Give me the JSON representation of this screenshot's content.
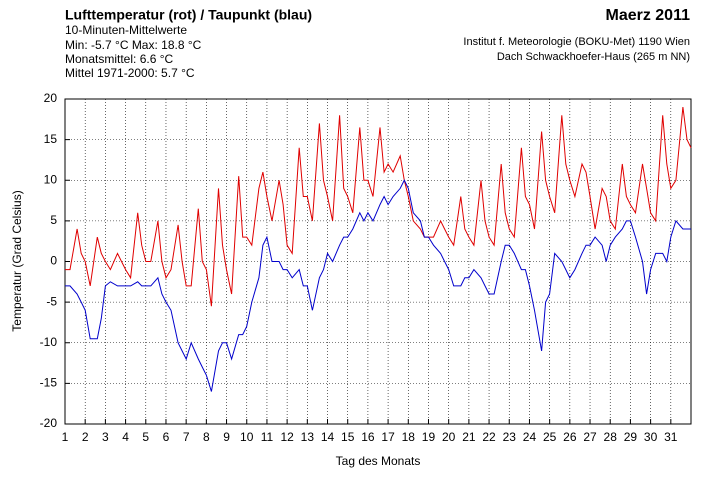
{
  "chart_data": {
    "type": "line",
    "title": "Lufttemperatur (rot) / Taupunkt (blau)",
    "subtitle": "10-Minuten-Mittelwerte",
    "annotations": [
      "Min:  -5.7 °C   Max:  18.8 °C",
      "Monatsmittel:  6.6 °C",
      "Mittel 1971-2000:  5.7 °C"
    ],
    "period": "Maerz 2011",
    "source": [
      "Institut f. Meteorologie (BOKU-Met) 1190 Wien",
      "Dach Schwackhoefer-Haus (265 m NN)"
    ],
    "xlabel": "Tag des Monats",
    "ylabel": "Temperatur (Grad Celsius)",
    "x": [
      1,
      1.25,
      1.6,
      1.8,
      2,
      2.25,
      2.6,
      2.8,
      3,
      3.25,
      3.6,
      3.8,
      4,
      4.25,
      4.6,
      4.8,
      5,
      5.25,
      5.6,
      5.8,
      6,
      6.25,
      6.6,
      6.8,
      7,
      7.25,
      7.6,
      7.8,
      8,
      8.25,
      8.6,
      8.8,
      9,
      9.25,
      9.6,
      9.8,
      10,
      10.25,
      10.6,
      10.8,
      11,
      11.25,
      11.6,
      11.8,
      12,
      12.25,
      12.6,
      12.8,
      13,
      13.25,
      13.6,
      13.8,
      14,
      14.25,
      14.6,
      14.8,
      15,
      15.25,
      15.6,
      15.8,
      16,
      16.25,
      16.6,
      16.8,
      17,
      17.25,
      17.6,
      17.8,
      18,
      18.25,
      18.6,
      18.8,
      19,
      19.25,
      19.6,
      19.8,
      20,
      20.25,
      20.6,
      20.8,
      21,
      21.25,
      21.6,
      21.8,
      22,
      22.25,
      22.6,
      22.8,
      23,
      23.25,
      23.6,
      23.8,
      24,
      24.25,
      24.6,
      24.8,
      25,
      25.25,
      25.6,
      25.8,
      26,
      26.25,
      26.6,
      26.8,
      27,
      27.25,
      27.6,
      27.8,
      28,
      28.25,
      28.6,
      28.8,
      29,
      29.25,
      29.6,
      29.8,
      30,
      30.25,
      30.6,
      30.8,
      31,
      31.25,
      31.6,
      31.8,
      32
    ],
    "series": [
      {
        "name": "Lufttemperatur",
        "color": "#e00000",
        "values": [
          -1,
          -1,
          4,
          1,
          0,
          -3,
          3,
          1,
          0,
          -1,
          1,
          0,
          -1,
          -2,
          6,
          2,
          0,
          0,
          5,
          0,
          -2,
          -1,
          4.5,
          0,
          -3,
          -3,
          6.5,
          0,
          -1,
          -5.5,
          9,
          2,
          -1,
          -4,
          10.5,
          3,
          3,
          2,
          9,
          11,
          8,
          5,
          10,
          7,
          2,
          1,
          14,
          8,
          8,
          5,
          17,
          10,
          8,
          5,
          18,
          9,
          8,
          6,
          16.5,
          10,
          10,
          8,
          16.5,
          11,
          12,
          11,
          13,
          10,
          8,
          5,
          4,
          3,
          3,
          3,
          5,
          4,
          3,
          2,
          8,
          4,
          3,
          2,
          10,
          5,
          3,
          2,
          12,
          6,
          4,
          3,
          14,
          8,
          7,
          4,
          16,
          10,
          8,
          6,
          18,
          12,
          10,
          8,
          12,
          11,
          8,
          4,
          9,
          8,
          5,
          4,
          12,
          8,
          7,
          6,
          12,
          9,
          6,
          5,
          18,
          12,
          9,
          10,
          19,
          15,
          14
        ]
      },
      {
        "name": "Taupunkt",
        "color": "#0000cc",
        "values": [
          -3,
          -3,
          -4,
          -5,
          -6,
          -9.5,
          -9.5,
          -7,
          -3,
          -2.5,
          -3,
          -3,
          -3,
          -3,
          -2.5,
          -3,
          -3,
          -3,
          -2,
          -4,
          -5,
          -6,
          -10,
          -11,
          -12,
          -10,
          -12,
          -13,
          -14,
          -16,
          -11,
          -10,
          -10,
          -12,
          -9,
          -9,
          -8,
          -5,
          -2,
          2,
          3,
          0,
          0,
          -1,
          -1,
          -2,
          -1,
          -3,
          -3,
          -6,
          -2,
          -1,
          1,
          0,
          2,
          3,
          3,
          4,
          6,
          5,
          6,
          5,
          7,
          8,
          7,
          8,
          9,
          10,
          9,
          6,
          5,
          3,
          3,
          2,
          1,
          0,
          -1,
          -3,
          -3,
          -2,
          -2,
          -1,
          -2,
          -3,
          -4,
          -4,
          0,
          2,
          2,
          1,
          -1,
          -1,
          -3,
          -6,
          -11,
          -5,
          -4,
          1,
          0,
          -1,
          -2,
          -1,
          1,
          2,
          2,
          3,
          2,
          0,
          2,
          3,
          4,
          5,
          5,
          3,
          0,
          -4,
          -1,
          1,
          1,
          0,
          3,
          5,
          4,
          4,
          4
        ]
      }
    ],
    "xlim": [
      1,
      32
    ],
    "xticks": [
      1,
      2,
      3,
      4,
      5,
      6,
      7,
      8,
      9,
      10,
      11,
      12,
      13,
      14,
      15,
      16,
      17,
      18,
      19,
      20,
      21,
      22,
      23,
      24,
      25,
      26,
      27,
      28,
      29,
      30,
      31
    ],
    "ylim": [
      -20,
      20
    ],
    "yticks": [
      -20,
      -15,
      -10,
      -5,
      0,
      5,
      10,
      15,
      20
    ],
    "grid": true
  }
}
